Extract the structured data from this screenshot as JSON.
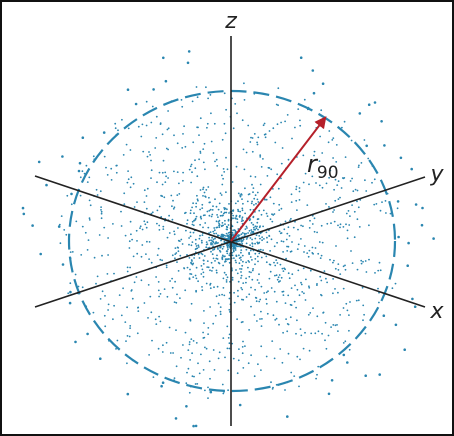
{
  "labels": {
    "z": "z",
    "y": "y",
    "x": "x",
    "radius": "r",
    "radius_subscript": "90"
  }
}
